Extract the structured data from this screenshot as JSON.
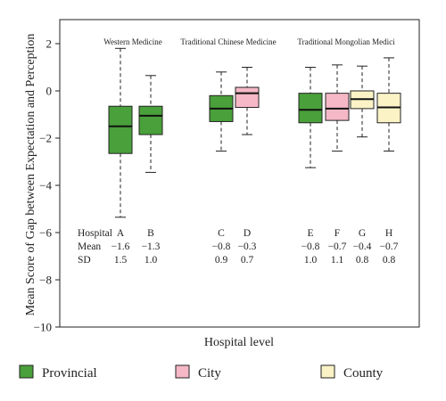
{
  "chart_data": {
    "type": "box",
    "ylabel": "Mean Score of Gap between Expectation and Perception",
    "xlabel": "Hospital level",
    "ylim": [
      -10,
      2.8
    ],
    "yticks": [
      2,
      0,
      -2,
      -4,
      -6,
      -8,
      -10
    ],
    "yticklabels": [
      "2",
      "0",
      "−2",
      "−4",
      "−6",
      "−8",
      "−10"
    ],
    "groups": [
      {
        "label": "Western Medicine",
        "hospitals": [
          "A",
          "B"
        ]
      },
      {
        "label": "Traditional Chinese Medicine",
        "hospitals": [
          "C",
          "D"
        ]
      },
      {
        "label": "Traditional Mongolian Medici",
        "hospitals": [
          "E",
          "F",
          "G",
          "H"
        ]
      }
    ],
    "stats_row_labels": [
      "Hospital",
      "Mean",
      "SD"
    ],
    "boxes": [
      {
        "hospital": "A",
        "level": "Provincial",
        "whisker_low": -5.35,
        "q1": -2.65,
        "median": -1.5,
        "q3": -0.65,
        "whisker_high": 1.8,
        "mean": "−1.6",
        "sd": "1.5"
      },
      {
        "hospital": "B",
        "level": "Provincial",
        "whisker_low": -3.45,
        "q1": -1.85,
        "median": -1.05,
        "q3": -0.65,
        "whisker_high": 0.65,
        "mean": "−1.3",
        "sd": "1.0"
      },
      {
        "hospital": "C",
        "level": "Provincial",
        "whisker_low": -2.55,
        "q1": -1.3,
        "median": -0.75,
        "q3": -0.2,
        "whisker_high": 0.8,
        "mean": "−0.8",
        "sd": "0.9"
      },
      {
        "hospital": "D",
        "level": "City",
        "whisker_low": -1.85,
        "q1": -0.7,
        "median": -0.1,
        "q3": 0.15,
        "whisker_high": 1.0,
        "mean": "−0.3",
        "sd": "0.7"
      },
      {
        "hospital": "E",
        "level": "Provincial",
        "whisker_low": -3.25,
        "q1": -1.35,
        "median": -0.8,
        "q3": -0.1,
        "whisker_high": 1.0,
        "mean": "−0.8",
        "sd": "1.0"
      },
      {
        "hospital": "F",
        "level": "City",
        "whisker_low": -2.55,
        "q1": -1.25,
        "median": -0.75,
        "q3": -0.1,
        "whisker_high": 1.1,
        "mean": "−0.7",
        "sd": "1.1"
      },
      {
        "hospital": "G",
        "level": "County",
        "whisker_low": -1.95,
        "q1": -0.75,
        "median": -0.35,
        "q3": 0.0,
        "whisker_high": 1.05,
        "mean": "−0.4",
        "sd": "0.8"
      },
      {
        "hospital": "H",
        "level": "County",
        "whisker_low": -2.55,
        "q1": -1.35,
        "median": -0.7,
        "q3": -0.1,
        "whisker_high": 1.4,
        "mean": "−0.7",
        "sd": "0.8"
      }
    ],
    "legend": [
      {
        "label": "Provincial",
        "color": "#4aa03a"
      },
      {
        "label": "City",
        "color": "#f6b8c6"
      },
      {
        "label": "County",
        "color": "#fbf3c6"
      }
    ],
    "legend_placement": "bottom",
    "grid": false
  }
}
